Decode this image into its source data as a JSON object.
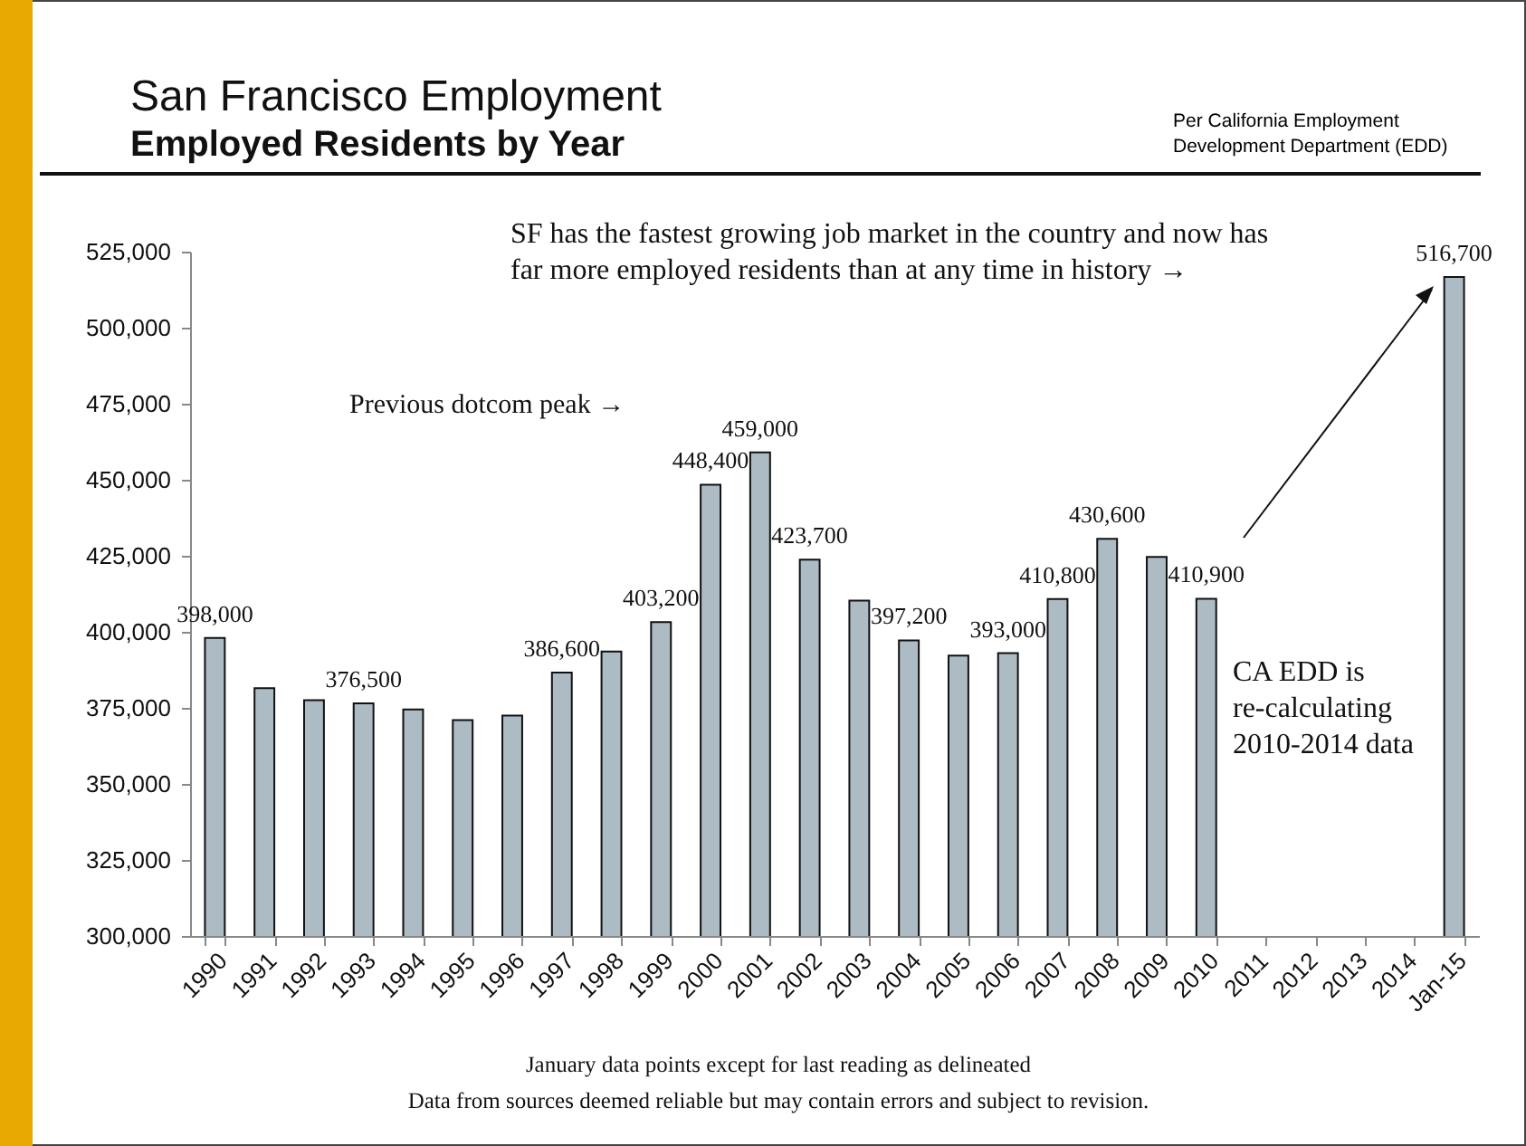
{
  "chart_data": {
    "type": "bar",
    "title": "San Francisco Employment",
    "subtitle": "Employed Residents by Year",
    "categories": [
      "1990",
      "1991",
      "1992",
      "1993",
      "1994",
      "1995",
      "1996",
      "1997",
      "1998",
      "1999",
      "2000",
      "2001",
      "2002",
      "2003",
      "2004",
      "2005",
      "2006",
      "2007",
      "2008",
      "2009",
      "2010",
      "2011",
      "2012",
      "2013",
      "2014",
      "Jan-15"
    ],
    "values": [
      398000,
      381500,
      377500,
      376500,
      374500,
      371000,
      372500,
      386600,
      393500,
      403200,
      448400,
      459000,
      423700,
      410300,
      397200,
      392200,
      393000,
      410800,
      430600,
      424600,
      410900,
      null,
      null,
      null,
      null,
      516700
    ],
    "value_labels": [
      "398,000",
      null,
      null,
      "376,500",
      null,
      null,
      null,
      "386,600",
      null,
      "403,200",
      "448,400",
      "459,000",
      "423,700",
      null,
      "397,200",
      null,
      "393,000",
      "410,800",
      "430,600",
      null,
      "410,900",
      null,
      null,
      null,
      null,
      "516,700"
    ],
    "color": "#adbcc4",
    "ylim": [
      300000,
      525000
    ],
    "yticks": [
      {
        "value": 300000,
        "label": "300,000"
      },
      {
        "value": 325000,
        "label": "325,000"
      },
      {
        "value": 350000,
        "label": "350,000"
      },
      {
        "value": 375000,
        "label": "375,000"
      },
      {
        "value": 400000,
        "label": "400,000"
      },
      {
        "value": 425000,
        "label": "425,000"
      },
      {
        "value": 450000,
        "label": "450,000"
      },
      {
        "value": 475000,
        "label": "475,000"
      },
      {
        "value": 500000,
        "label": "500,000"
      },
      {
        "value": 525000,
        "label": "525,000"
      }
    ],
    "grid": false,
    "annotations": [
      "Per California Employment Development Department (EDD)",
      "SF has the fastest growing job market in the country and now has far more employed residents than at any time in history →",
      "Previous dotcom peak →",
      "CA EDD is re-calculating 2010-2014 data",
      "January data points except for last reading as delineated",
      "Data from sources deemed reliable but may contain errors and subject to revision."
    ]
  }
}
